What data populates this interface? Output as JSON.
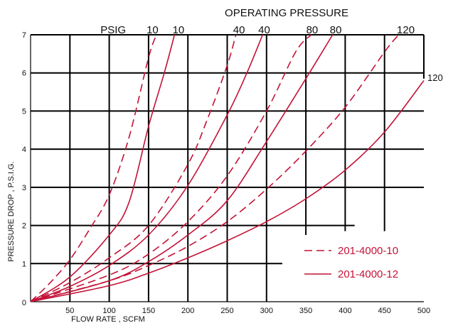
{
  "chart_data": {
    "type": "line",
    "title": "OPERATING PRESSURE",
    "xlabel": "FLOW RATE , SCFM",
    "ylabel": "PRESSURE DROP , P.S.I.G.",
    "xlim": [
      0,
      500
    ],
    "ylim": [
      0,
      7
    ],
    "x_ticks": [
      "50",
      "100",
      "150",
      "200",
      "250",
      "300",
      "350",
      "400",
      "450",
      "500"
    ],
    "y_ticks": [
      "0",
      "1",
      "2",
      "3",
      "4",
      "5",
      "6",
      "7"
    ],
    "y_origin_label": "0",
    "grid": true,
    "top_labels": [
      {
        "text": "PSIG",
        "x": 105
      },
      {
        "text": "10",
        "x": 155
      },
      {
        "text": "10",
        "x": 188
      },
      {
        "text": "40",
        "x": 265
      },
      {
        "text": "40",
        "x": 297
      },
      {
        "text": "80",
        "x": 358
      },
      {
        "text": "80",
        "x": 388
      },
      {
        "text": "120",
        "x": 477
      }
    ],
    "right_label": {
      "text": "120",
      "y": 5.95
    },
    "curve_color": "#c41237",
    "legend": {
      "placement": "bottom-right",
      "entries": [
        {
          "label": "201-4000-10",
          "style": "dashed"
        },
        {
          "label": "201-4000-12",
          "style": "solid"
        }
      ]
    },
    "series": [
      {
        "pressure": "10",
        "style": "dashed",
        "points": [
          [
            0,
            0
          ],
          [
            25,
            0.5
          ],
          [
            50,
            1.1
          ],
          [
            75,
            1.9
          ],
          [
            100,
            2.8
          ],
          [
            125,
            4.3
          ],
          [
            150,
            6.4
          ],
          [
            160,
            7.0
          ]
        ]
      },
      {
        "pressure": "10",
        "style": "solid",
        "points": [
          [
            0,
            0
          ],
          [
            50,
            0.65
          ],
          [
            100,
            1.75
          ],
          [
            125,
            2.6
          ],
          [
            150,
            4.6
          ],
          [
            170,
            6.0
          ],
          [
            183,
            7.0
          ]
        ]
      },
      {
        "pressure": "40",
        "style": "dashed",
        "points": [
          [
            0,
            0
          ],
          [
            50,
            0.5
          ],
          [
            100,
            1.15
          ],
          [
            150,
            2.0
          ],
          [
            200,
            3.6
          ],
          [
            225,
            4.8
          ],
          [
            250,
            6.2
          ],
          [
            261,
            7.0
          ]
        ]
      },
      {
        "pressure": "40",
        "style": "solid",
        "points": [
          [
            0,
            0
          ],
          [
            50,
            0.4
          ],
          [
            100,
            0.95
          ],
          [
            150,
            1.75
          ],
          [
            200,
            3.05
          ],
          [
            250,
            4.9
          ],
          [
            275,
            6.0
          ],
          [
            295,
            7.0
          ]
        ]
      },
      {
        "pressure": "80",
        "style": "dashed",
        "points": [
          [
            0,
            0
          ],
          [
            100,
            0.7
          ],
          [
            150,
            1.25
          ],
          [
            200,
            2.1
          ],
          [
            250,
            3.3
          ],
          [
            300,
            5.0
          ],
          [
            337,
            6.55
          ],
          [
            357,
            7.0
          ]
        ]
      },
      {
        "pressure": "80",
        "style": "solid",
        "points": [
          [
            0,
            0
          ],
          [
            100,
            0.55
          ],
          [
            150,
            1.05
          ],
          [
            200,
            1.75
          ],
          [
            250,
            2.65
          ],
          [
            300,
            4.2
          ],
          [
            350,
            5.85
          ],
          [
            384,
            7.0
          ]
        ]
      },
      {
        "pressure": "120",
        "style": "dashed",
        "points": [
          [
            0,
            0
          ],
          [
            100,
            0.55
          ],
          [
            150,
            0.95
          ],
          [
            200,
            1.45
          ],
          [
            250,
            2.1
          ],
          [
            300,
            2.95
          ],
          [
            350,
            3.95
          ],
          [
            400,
            5.1
          ],
          [
            450,
            6.55
          ],
          [
            468,
            7.0
          ]
        ]
      },
      {
        "pressure": "120",
        "style": "solid",
        "points": [
          [
            0,
            0
          ],
          [
            100,
            0.42
          ],
          [
            150,
            0.75
          ],
          [
            200,
            1.15
          ],
          [
            250,
            1.6
          ],
          [
            300,
            2.1
          ],
          [
            350,
            2.7
          ],
          [
            400,
            3.45
          ],
          [
            450,
            4.45
          ],
          [
            500,
            5.8
          ]
        ]
      }
    ]
  }
}
